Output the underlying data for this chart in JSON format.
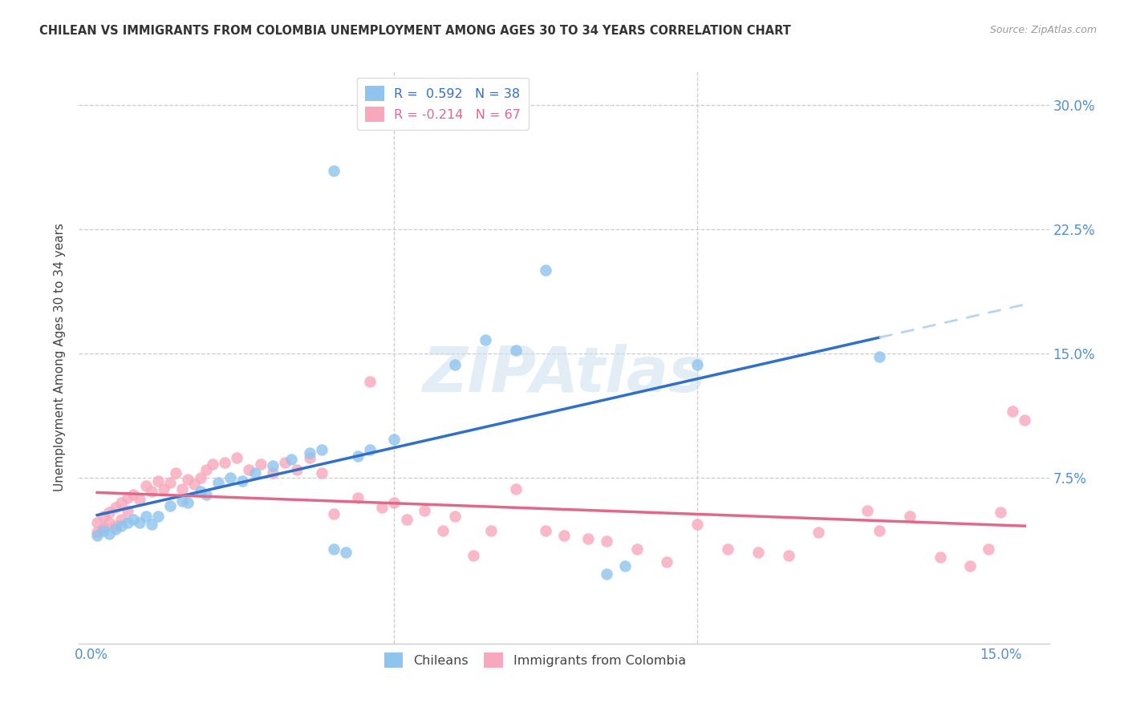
{
  "title": "CHILEAN VS IMMIGRANTS FROM COLOMBIA UNEMPLOYMENT AMONG AGES 30 TO 34 YEARS CORRELATION CHART",
  "source": "Source: ZipAtlas.com",
  "ylabel": "Unemployment Among Ages 30 to 34 years",
  "xlim": [
    -0.002,
    0.158
  ],
  "ylim": [
    -0.025,
    0.32
  ],
  "chilean_R": 0.592,
  "chilean_N": 38,
  "colombia_R": -0.214,
  "colombia_N": 67,
  "chilean_color": "#8ec4ee",
  "colombia_color": "#f8a8bc",
  "chilean_line_color": "#3070c8",
  "colombia_line_color": "#e06888",
  "dashed_line_color": "#b8d4f0",
  "background_color": "#ffffff",
  "chile_x": [
    0.001,
    0.002,
    0.003,
    0.004,
    0.005,
    0.006,
    0.007,
    0.008,
    0.009,
    0.01,
    0.011,
    0.013,
    0.015,
    0.016,
    0.018,
    0.019,
    0.021,
    0.023,
    0.025,
    0.027,
    0.03,
    0.033,
    0.036,
    0.038,
    0.04,
    0.042,
    0.044,
    0.046,
    0.05,
    0.06,
    0.065,
    0.07,
    0.075,
    0.085,
    0.088,
    0.04,
    0.1,
    0.13
  ],
  "chile_y": [
    0.04,
    0.043,
    0.041,
    0.044,
    0.046,
    0.048,
    0.05,
    0.048,
    0.052,
    0.047,
    0.052,
    0.058,
    0.061,
    0.06,
    0.067,
    0.065,
    0.072,
    0.075,
    0.073,
    0.078,
    0.082,
    0.086,
    0.09,
    0.092,
    0.032,
    0.03,
    0.088,
    0.092,
    0.098,
    0.143,
    0.158,
    0.152,
    0.2,
    0.017,
    0.022,
    0.26,
    0.143,
    0.148
  ],
  "colombia_x": [
    0.001,
    0.001,
    0.002,
    0.002,
    0.003,
    0.003,
    0.004,
    0.004,
    0.005,
    0.005,
    0.006,
    0.006,
    0.007,
    0.008,
    0.009,
    0.01,
    0.011,
    0.012,
    0.013,
    0.014,
    0.015,
    0.016,
    0.017,
    0.018,
    0.019,
    0.02,
    0.022,
    0.024,
    0.026,
    0.028,
    0.03,
    0.032,
    0.034,
    0.036,
    0.038,
    0.04,
    0.044,
    0.046,
    0.048,
    0.05,
    0.052,
    0.055,
    0.058,
    0.06,
    0.063,
    0.066,
    0.07,
    0.075,
    0.078,
    0.082,
    0.085,
    0.09,
    0.095,
    0.1,
    0.105,
    0.11,
    0.115,
    0.12,
    0.128,
    0.13,
    0.135,
    0.14,
    0.145,
    0.148,
    0.15,
    0.152,
    0.154
  ],
  "colombia_y": [
    0.042,
    0.048,
    0.045,
    0.052,
    0.048,
    0.054,
    0.046,
    0.057,
    0.05,
    0.06,
    0.055,
    0.063,
    0.065,
    0.062,
    0.07,
    0.067,
    0.073,
    0.068,
    0.072,
    0.078,
    0.068,
    0.074,
    0.071,
    0.075,
    0.08,
    0.083,
    0.084,
    0.087,
    0.08,
    0.083,
    0.078,
    0.084,
    0.08,
    0.087,
    0.078,
    0.053,
    0.063,
    0.133,
    0.057,
    0.06,
    0.05,
    0.055,
    0.043,
    0.052,
    0.028,
    0.043,
    0.068,
    0.043,
    0.04,
    0.038,
    0.037,
    0.032,
    0.024,
    0.047,
    0.032,
    0.03,
    0.028,
    0.042,
    0.055,
    0.043,
    0.052,
    0.027,
    0.022,
    0.032,
    0.054,
    0.115,
    0.11
  ]
}
